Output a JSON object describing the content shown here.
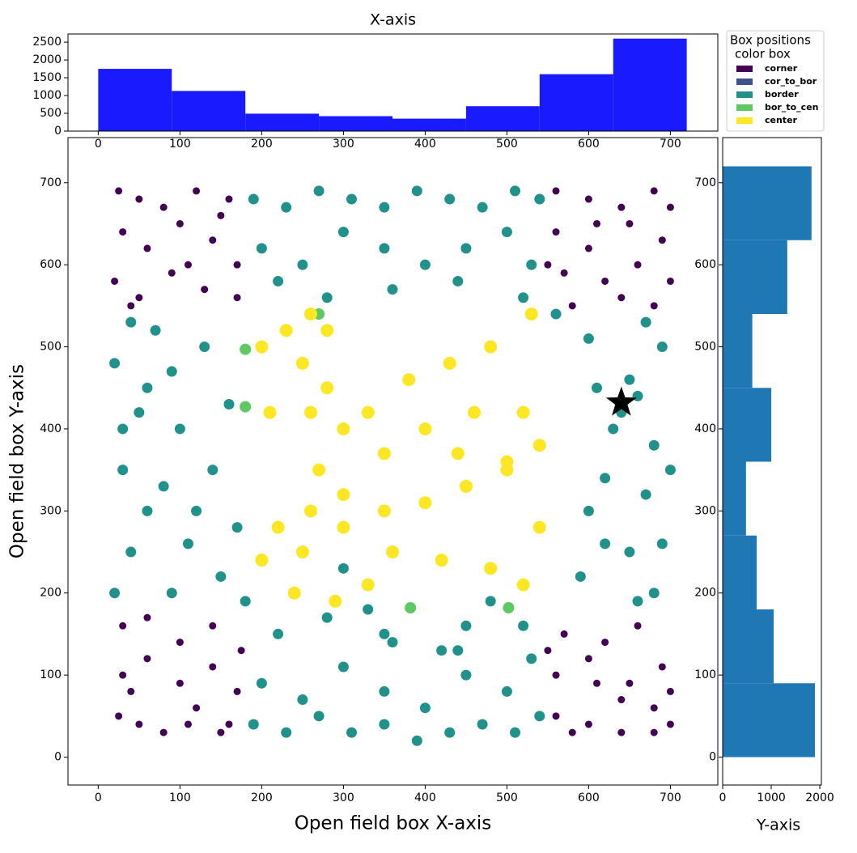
{
  "chart_data": [
    {
      "type": "histogram",
      "title": "X-axis",
      "bins": [
        0,
        90,
        180,
        270,
        360,
        450,
        540,
        630,
        720
      ],
      "values": [
        1750,
        1130,
        490,
        420,
        350,
        700,
        1600,
        2600
      ],
      "color": "#1a1aff",
      "xlim": [
        -37,
        758
      ],
      "xticks": [
        0,
        100,
        200,
        300,
        400,
        500,
        600,
        700
      ],
      "ylim": [
        0,
        2730
      ],
      "yticks": [
        0,
        500,
        1000,
        1500,
        2000,
        2500
      ]
    },
    {
      "type": "scatter",
      "xlabel": "Open field box X-axis",
      "ylabel": "Open field box Y-axis",
      "xlim": [
        -37,
        758
      ],
      "ylim": [
        -34,
        755
      ],
      "xticks": [
        0,
        100,
        200,
        300,
        400,
        500,
        600,
        700
      ],
      "yticks": [
        0,
        100,
        200,
        300,
        400,
        500,
        600,
        700
      ],
      "legend_title": [
        "Box positions",
        "color box"
      ],
      "legend": "outside upper right",
      "series": [
        {
          "name": "corner",
          "color": "#440154",
          "marker_size": 4.5,
          "x": [
            25,
            50,
            80,
            120,
            160,
            30,
            60,
            100,
            140,
            170,
            20,
            50,
            90,
            130,
            170,
            40,
            110,
            150,
            560,
            600,
            640,
            680,
            700,
            560,
            600,
            650,
            690,
            570,
            620,
            660,
            700,
            580,
            640,
            680,
            610,
            550,
            25,
            50,
            80,
            120,
            160,
            30,
            60,
            100,
            140,
            170,
            30,
            60,
            100,
            140,
            175,
            40,
            110,
            150,
            560,
            600,
            640,
            680,
            700,
            560,
            600,
            650,
            690,
            570,
            620,
            660,
            700,
            580,
            640,
            680,
            610,
            550
          ],
          "y": [
            690,
            680,
            670,
            690,
            680,
            640,
            620,
            650,
            630,
            600,
            580,
            560,
            590,
            570,
            560,
            550,
            600,
            660,
            690,
            680,
            670,
            690,
            670,
            640,
            620,
            650,
            630,
            590,
            580,
            600,
            580,
            550,
            560,
            550,
            650,
            600,
            50,
            40,
            30,
            60,
            40,
            100,
            120,
            90,
            110,
            80,
            160,
            170,
            140,
            160,
            130,
            80,
            40,
            30,
            50,
            40,
            30,
            60,
            40,
            100,
            120,
            90,
            110,
            150,
            140,
            160,
            80,
            30,
            70,
            30,
            90,
            130
          ]
        },
        {
          "name": "cor_to_bor",
          "color": "#3b528b",
          "marker_size": 5,
          "x": [],
          "y": []
        },
        {
          "name": "border",
          "color": "#21918c",
          "marker_size": 6.5,
          "x": [
            190,
            230,
            270,
            310,
            350,
            390,
            430,
            470,
            510,
            540,
            200,
            250,
            300,
            350,
            400,
            450,
            500,
            530,
            220,
            280,
            360,
            440,
            520,
            190,
            230,
            270,
            310,
            350,
            390,
            430,
            470,
            510,
            540,
            200,
            250,
            300,
            350,
            400,
            450,
            500,
            530,
            220,
            280,
            360,
            440,
            520,
            20,
            40,
            60,
            30,
            50,
            20,
            40,
            90,
            110,
            80,
            100,
            90,
            70,
            150,
            170,
            140,
            160,
            130,
            180,
            120,
            60,
            30,
            680,
            690,
            670,
            680,
            660,
            690,
            670,
            640,
            650,
            630,
            620,
            600,
            650,
            660,
            600,
            700,
            560,
            610,
            420,
            450,
            480,
            350,
            330,
            300,
            590,
            620
          ],
          "y": [
            680,
            670,
            690,
            680,
            670,
            690,
            680,
            670,
            690,
            680,
            620,
            600,
            640,
            620,
            600,
            620,
            640,
            600,
            580,
            560,
            570,
            580,
            560,
            40,
            30,
            50,
            30,
            40,
            20,
            30,
            40,
            30,
            50,
            90,
            70,
            110,
            80,
            60,
            100,
            80,
            120,
            150,
            170,
            140,
            130,
            160,
            200,
            250,
            300,
            350,
            420,
            480,
            530,
            200,
            260,
            330,
            400,
            470,
            520,
            220,
            280,
            350,
            430,
            500,
            190,
            300,
            450,
            400,
            200,
            260,
            320,
            380,
            440,
            500,
            530,
            420,
            460,
            400,
            340,
            300,
            250,
            190,
            510,
            350,
            540,
            450,
            130,
            160,
            190,
            150,
            180,
            230,
            220,
            260
          ]
        },
        {
          "name": "bor_to_cen",
          "color": "#5ec962",
          "marker_size": 7,
          "x": [
            180,
            180,
            382,
            502,
            270
          ],
          "y": [
            497,
            427,
            182,
            182,
            540
          ]
        },
        {
          "name": "center",
          "color": "#fde725",
          "marker_size": 8,
          "x": [
            200,
            230,
            260,
            250,
            280,
            300,
            270,
            260,
            250,
            240,
            300,
            350,
            400,
            450,
            500,
            540,
            330,
            380,
            430,
            480,
            530,
            300,
            360,
            420,
            480,
            520,
            540,
            220,
            200,
            210,
            400,
            460,
            520,
            330,
            290,
            350,
            440,
            500,
            260,
            280
          ],
          "y": [
            500,
            520,
            540,
            480,
            450,
            400,
            350,
            300,
            250,
            200,
            320,
            300,
            310,
            330,
            350,
            380,
            420,
            460,
            480,
            500,
            540,
            280,
            250,
            240,
            230,
            210,
            280,
            280,
            240,
            420,
            400,
            420,
            420,
            210,
            190,
            370,
            370,
            360,
            420,
            520
          ]
        }
      ],
      "star_point": [
        640,
        432
      ],
      "star_color": "#000000"
    },
    {
      "type": "histogram_horizontal",
      "xlabel": "Y-axis",
      "bins": [
        0,
        90,
        180,
        270,
        360,
        450,
        540,
        630,
        720
      ],
      "values": [
        1900,
        1050,
        700,
        480,
        1000,
        610,
        1330,
        1830
      ],
      "color": "#1f77b4",
      "xlim": [
        0,
        2033
      ],
      "xticks": [
        0,
        1000,
        2000
      ],
      "ylim": [
        -34,
        755
      ],
      "yticks": [
        0,
        100,
        200,
        300,
        400,
        500,
        600,
        700
      ]
    }
  ]
}
